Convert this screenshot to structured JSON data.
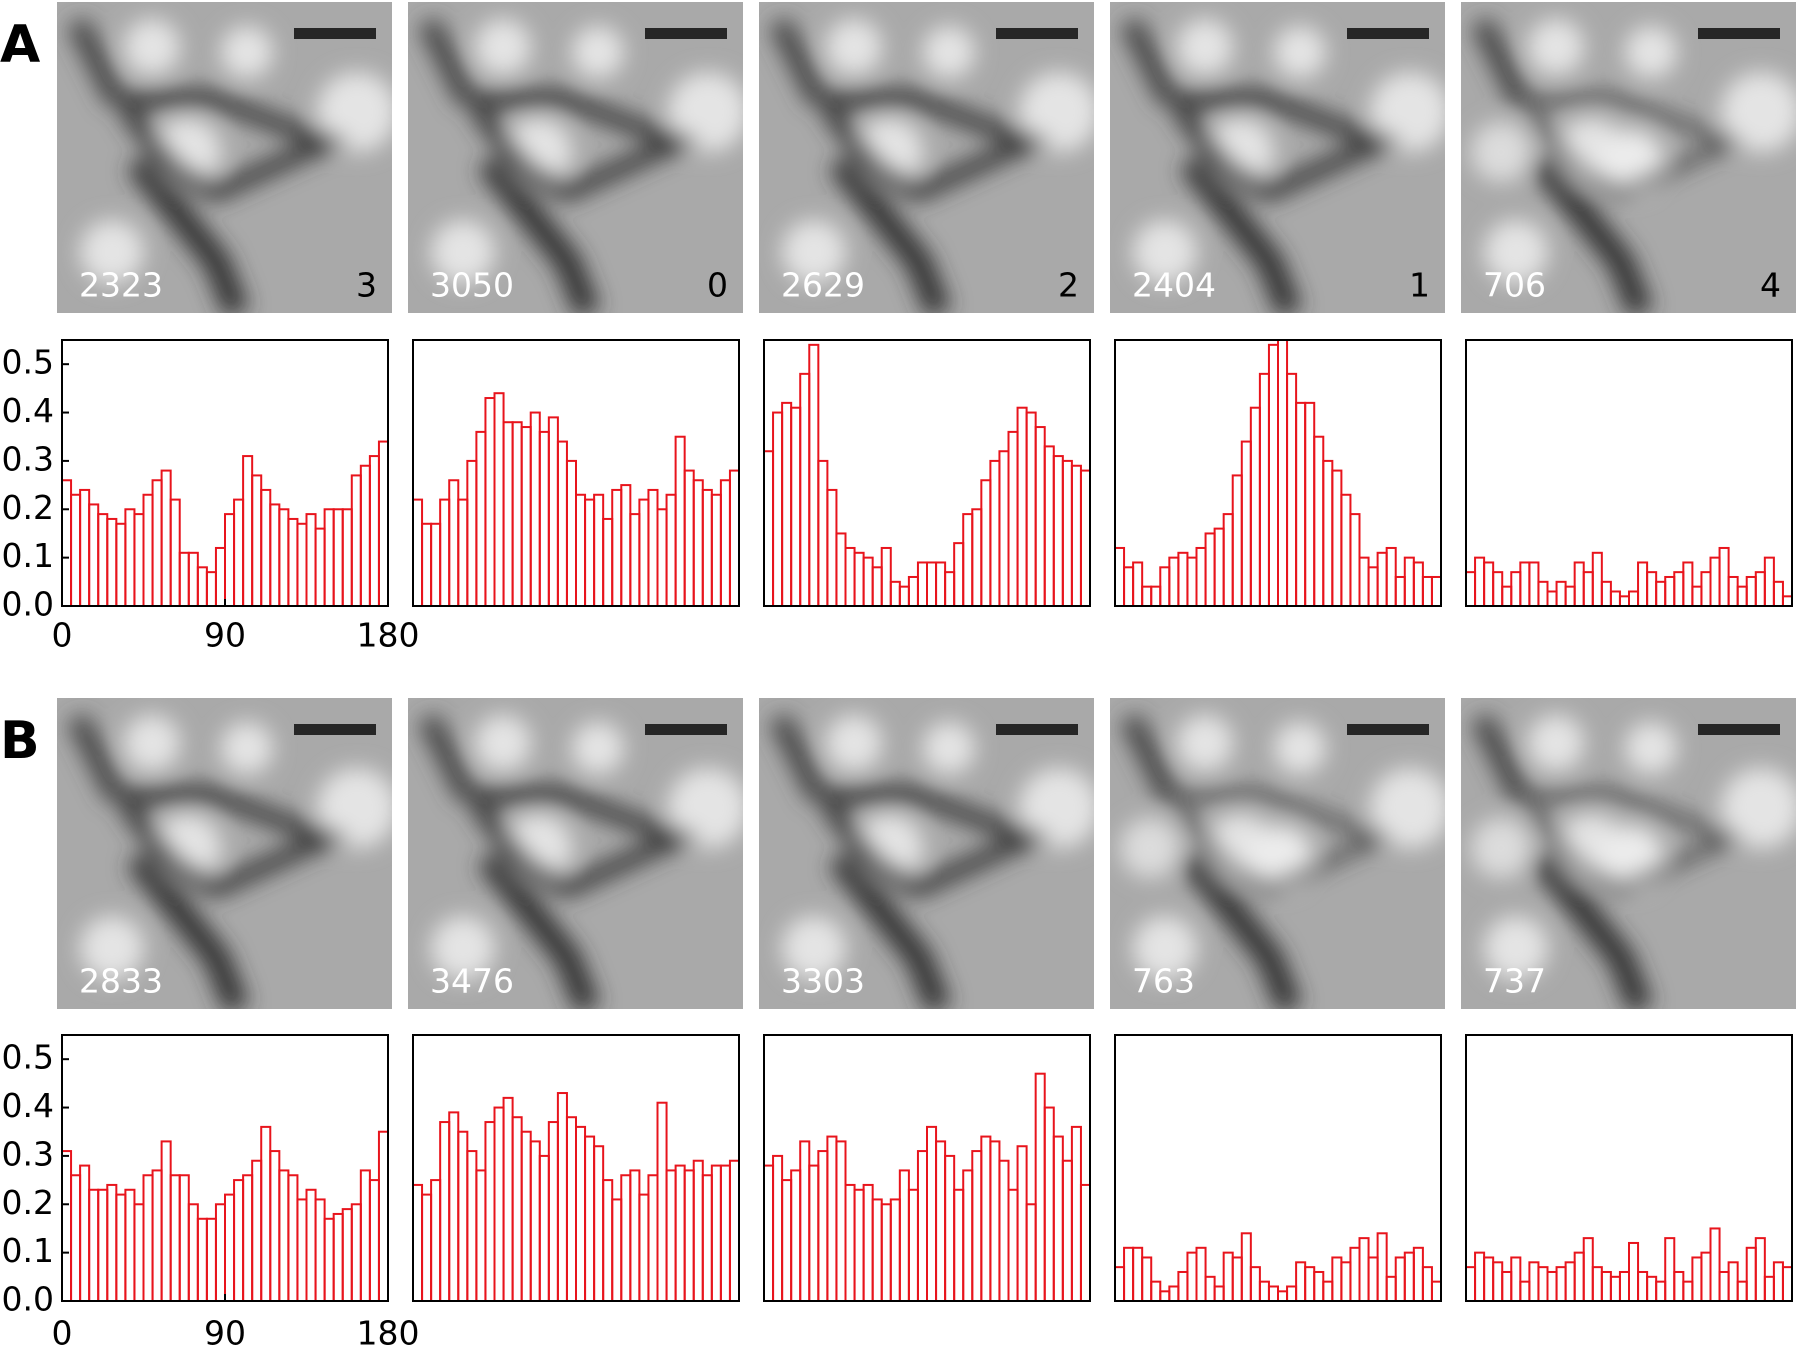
{
  "panels": [
    {
      "label": "A",
      "images": [
        {
          "count": 2323,
          "class": 3
        },
        {
          "count": 3050,
          "class": 0
        },
        {
          "count": 2629,
          "class": 2
        },
        {
          "count": 2404,
          "class": 1
        },
        {
          "count": 706,
          "class": 4
        }
      ]
    },
    {
      "label": "B",
      "images": [
        {
          "count": 2833
        },
        {
          "count": 3476
        },
        {
          "count": 3303
        },
        {
          "count": 763
        },
        {
          "count": 737
        }
      ]
    }
  ],
  "chart_data": [
    {
      "type": "histogram",
      "bins": [
        0,
        5,
        10,
        15,
        20,
        25,
        30,
        35,
        40,
        45,
        50,
        55,
        60,
        65,
        70,
        75,
        80,
        85,
        90,
        95,
        100,
        105,
        110,
        115,
        120,
        125,
        130,
        135,
        140,
        145,
        150,
        155,
        160,
        165,
        170,
        175,
        180
      ],
      "values": [
        0.26,
        0.23,
        0.24,
        0.21,
        0.19,
        0.18,
        0.17,
        0.2,
        0.19,
        0.23,
        0.26,
        0.28,
        0.22,
        0.11,
        0.11,
        0.08,
        0.07,
        0.12,
        0.19,
        0.22,
        0.31,
        0.27,
        0.24,
        0.21,
        0.2,
        0.18,
        0.17,
        0.19,
        0.16,
        0.2,
        0.2,
        0.2,
        0.27,
        0.29,
        0.31,
        0.34
      ],
      "color": "#e8141c",
      "xlim": [
        0,
        180
      ],
      "ylim": [
        0,
        0.55
      ],
      "xticks": [
        0,
        90,
        180
      ],
      "yticks": [
        {
          "value": 0,
          "label": "0.0"
        },
        0.1,
        0.2,
        0.3,
        0.4,
        0.5
      ]
    },
    {
      "type": "histogram",
      "bins": [
        0,
        5,
        10,
        15,
        20,
        25,
        30,
        35,
        40,
        45,
        50,
        55,
        60,
        65,
        70,
        75,
        80,
        85,
        90,
        95,
        100,
        105,
        110,
        115,
        120,
        125,
        130,
        135,
        140,
        145,
        150,
        155,
        160,
        165,
        170,
        175,
        180
      ],
      "values": [
        0.22,
        0.17,
        0.17,
        0.22,
        0.26,
        0.22,
        0.3,
        0.36,
        0.43,
        0.44,
        0.38,
        0.38,
        0.37,
        0.4,
        0.36,
        0.39,
        0.34,
        0.3,
        0.23,
        0.22,
        0.23,
        0.18,
        0.24,
        0.25,
        0.19,
        0.22,
        0.24,
        0.2,
        0.23,
        0.35,
        0.28,
        0.26,
        0.24,
        0.23,
        0.26,
        0.28
      ],
      "color": "#e8141c",
      "xlim": [
        0,
        180
      ],
      "ylim": [
        0,
        0.55
      ]
    },
    {
      "type": "histogram",
      "bins": [
        0,
        5,
        10,
        15,
        20,
        25,
        30,
        35,
        40,
        45,
        50,
        55,
        60,
        65,
        70,
        75,
        80,
        85,
        90,
        95,
        100,
        105,
        110,
        115,
        120,
        125,
        130,
        135,
        140,
        145,
        150,
        155,
        160,
        165,
        170,
        175,
        180
      ],
      "values": [
        0.32,
        0.4,
        0.42,
        0.41,
        0.48,
        0.54,
        0.3,
        0.24,
        0.15,
        0.12,
        0.11,
        0.1,
        0.08,
        0.12,
        0.05,
        0.04,
        0.06,
        0.09,
        0.09,
        0.09,
        0.07,
        0.13,
        0.19,
        0.2,
        0.26,
        0.3,
        0.32,
        0.36,
        0.41,
        0.4,
        0.37,
        0.33,
        0.31,
        0.3,
        0.29,
        0.28
      ],
      "color": "#e8141c",
      "xlim": [
        0,
        180
      ],
      "ylim": [
        0,
        0.55
      ]
    },
    {
      "type": "histogram",
      "bins": [
        0,
        5,
        10,
        15,
        20,
        25,
        30,
        35,
        40,
        45,
        50,
        55,
        60,
        65,
        70,
        75,
        80,
        85,
        90,
        95,
        100,
        105,
        110,
        115,
        120,
        125,
        130,
        135,
        140,
        145,
        150,
        155,
        160,
        165,
        170,
        175,
        180
      ],
      "values": [
        0.12,
        0.08,
        0.09,
        0.04,
        0.04,
        0.08,
        0.1,
        0.11,
        0.1,
        0.12,
        0.15,
        0.16,
        0.19,
        0.27,
        0.34,
        0.41,
        0.48,
        0.54,
        0.55,
        0.48,
        0.42,
        0.42,
        0.35,
        0.3,
        0.28,
        0.23,
        0.19,
        0.1,
        0.08,
        0.11,
        0.12,
        0.06,
        0.1,
        0.09,
        0.06,
        0.06
      ],
      "color": "#e8141c",
      "xlim": [
        0,
        180
      ],
      "ylim": [
        0,
        0.55
      ]
    },
    {
      "type": "histogram",
      "bins": [
        0,
        5,
        10,
        15,
        20,
        25,
        30,
        35,
        40,
        45,
        50,
        55,
        60,
        65,
        70,
        75,
        80,
        85,
        90,
        95,
        100,
        105,
        110,
        115,
        120,
        125,
        130,
        135,
        140,
        145,
        150,
        155,
        160,
        165,
        170,
        175,
        180
      ],
      "values": [
        0.07,
        0.1,
        0.09,
        0.07,
        0.04,
        0.07,
        0.09,
        0.09,
        0.05,
        0.03,
        0.05,
        0.04,
        0.09,
        0.07,
        0.11,
        0.05,
        0.03,
        0.02,
        0.03,
        0.09,
        0.07,
        0.05,
        0.06,
        0.07,
        0.09,
        0.04,
        0.07,
        0.1,
        0.12,
        0.06,
        0.04,
        0.06,
        0.07,
        0.1,
        0.05,
        0.02
      ],
      "color": "#e8141c",
      "xlim": [
        0,
        180
      ],
      "ylim": [
        0,
        0.55
      ]
    },
    {
      "type": "histogram",
      "bins": [
        0,
        5,
        10,
        15,
        20,
        25,
        30,
        35,
        40,
        45,
        50,
        55,
        60,
        65,
        70,
        75,
        80,
        85,
        90,
        95,
        100,
        105,
        110,
        115,
        120,
        125,
        130,
        135,
        140,
        145,
        150,
        155,
        160,
        165,
        170,
        175,
        180
      ],
      "values": [
        0.31,
        0.26,
        0.28,
        0.23,
        0.23,
        0.24,
        0.22,
        0.23,
        0.2,
        0.26,
        0.27,
        0.33,
        0.26,
        0.26,
        0.2,
        0.17,
        0.17,
        0.2,
        0.22,
        0.25,
        0.26,
        0.29,
        0.36,
        0.31,
        0.27,
        0.26,
        0.21,
        0.23,
        0.21,
        0.17,
        0.18,
        0.19,
        0.2,
        0.27,
        0.25,
        0.35
      ],
      "color": "#e8141c",
      "xlim": [
        0,
        180
      ],
      "ylim": [
        0,
        0.55
      ],
      "xticks": [
        0,
        90,
        180
      ],
      "yticks": [
        {
          "value": 0,
          "label": "0.0"
        },
        0.1,
        0.2,
        0.3,
        0.4,
        0.5
      ]
    },
    {
      "type": "histogram",
      "bins": [
        0,
        5,
        10,
        15,
        20,
        25,
        30,
        35,
        40,
        45,
        50,
        55,
        60,
        65,
        70,
        75,
        80,
        85,
        90,
        95,
        100,
        105,
        110,
        115,
        120,
        125,
        130,
        135,
        140,
        145,
        150,
        155,
        160,
        165,
        170,
        175,
        180
      ],
      "values": [
        0.24,
        0.22,
        0.25,
        0.37,
        0.39,
        0.35,
        0.31,
        0.27,
        0.37,
        0.4,
        0.42,
        0.38,
        0.35,
        0.33,
        0.3,
        0.37,
        0.43,
        0.38,
        0.36,
        0.34,
        0.32,
        0.25,
        0.21,
        0.26,
        0.27,
        0.22,
        0.26,
        0.41,
        0.27,
        0.28,
        0.27,
        0.29,
        0.26,
        0.28,
        0.28,
        0.29
      ],
      "color": "#e8141c",
      "xlim": [
        0,
        180
      ],
      "ylim": [
        0,
        0.55
      ]
    },
    {
      "type": "histogram",
      "bins": [
        0,
        5,
        10,
        15,
        20,
        25,
        30,
        35,
        40,
        45,
        50,
        55,
        60,
        65,
        70,
        75,
        80,
        85,
        90,
        95,
        100,
        105,
        110,
        115,
        120,
        125,
        130,
        135,
        140,
        145,
        150,
        155,
        160,
        165,
        170,
        175,
        180
      ],
      "values": [
        0.28,
        0.3,
        0.25,
        0.27,
        0.33,
        0.28,
        0.31,
        0.34,
        0.33,
        0.24,
        0.23,
        0.24,
        0.21,
        0.2,
        0.21,
        0.27,
        0.23,
        0.31,
        0.36,
        0.33,
        0.3,
        0.23,
        0.27,
        0.31,
        0.34,
        0.33,
        0.29,
        0.23,
        0.32,
        0.2,
        0.47,
        0.4,
        0.34,
        0.29,
        0.36,
        0.24
      ],
      "color": "#e8141c",
      "xlim": [
        0,
        180
      ],
      "ylim": [
        0,
        0.55
      ]
    },
    {
      "type": "histogram",
      "bins": [
        0,
        5,
        10,
        15,
        20,
        25,
        30,
        35,
        40,
        45,
        50,
        55,
        60,
        65,
        70,
        75,
        80,
        85,
        90,
        95,
        100,
        105,
        110,
        115,
        120,
        125,
        130,
        135,
        140,
        145,
        150,
        155,
        160,
        165,
        170,
        175,
        180
      ],
      "values": [
        0.07,
        0.11,
        0.11,
        0.09,
        0.04,
        0.02,
        0.03,
        0.06,
        0.1,
        0.11,
        0.05,
        0.03,
        0.1,
        0.09,
        0.14,
        0.07,
        0.04,
        0.03,
        0.02,
        0.03,
        0.08,
        0.07,
        0.06,
        0.04,
        0.09,
        0.08,
        0.11,
        0.13,
        0.09,
        0.14,
        0.05,
        0.09,
        0.1,
        0.11,
        0.07,
        0.04
      ],
      "color": "#e8141c",
      "xlim": [
        0,
        180
      ],
      "ylim": [
        0,
        0.55
      ]
    },
    {
      "type": "histogram",
      "bins": [
        0,
        5,
        10,
        15,
        20,
        25,
        30,
        35,
        40,
        45,
        50,
        55,
        60,
        65,
        70,
        75,
        80,
        85,
        90,
        95,
        100,
        105,
        110,
        115,
        120,
        125,
        130,
        135,
        140,
        145,
        150,
        155,
        160,
        165,
        170,
        175,
        180
      ],
      "values": [
        0.07,
        0.1,
        0.09,
        0.08,
        0.06,
        0.09,
        0.04,
        0.08,
        0.07,
        0.06,
        0.07,
        0.08,
        0.1,
        0.13,
        0.07,
        0.06,
        0.05,
        0.06,
        0.12,
        0.06,
        0.05,
        0.04,
        0.13,
        0.06,
        0.04,
        0.09,
        0.1,
        0.15,
        0.06,
        0.08,
        0.04,
        0.11,
        0.13,
        0.05,
        0.08,
        0.07
      ],
      "color": "#e8141c",
      "xlim": [
        0,
        180
      ],
      "ylim": [
        0,
        0.55
      ]
    }
  ]
}
